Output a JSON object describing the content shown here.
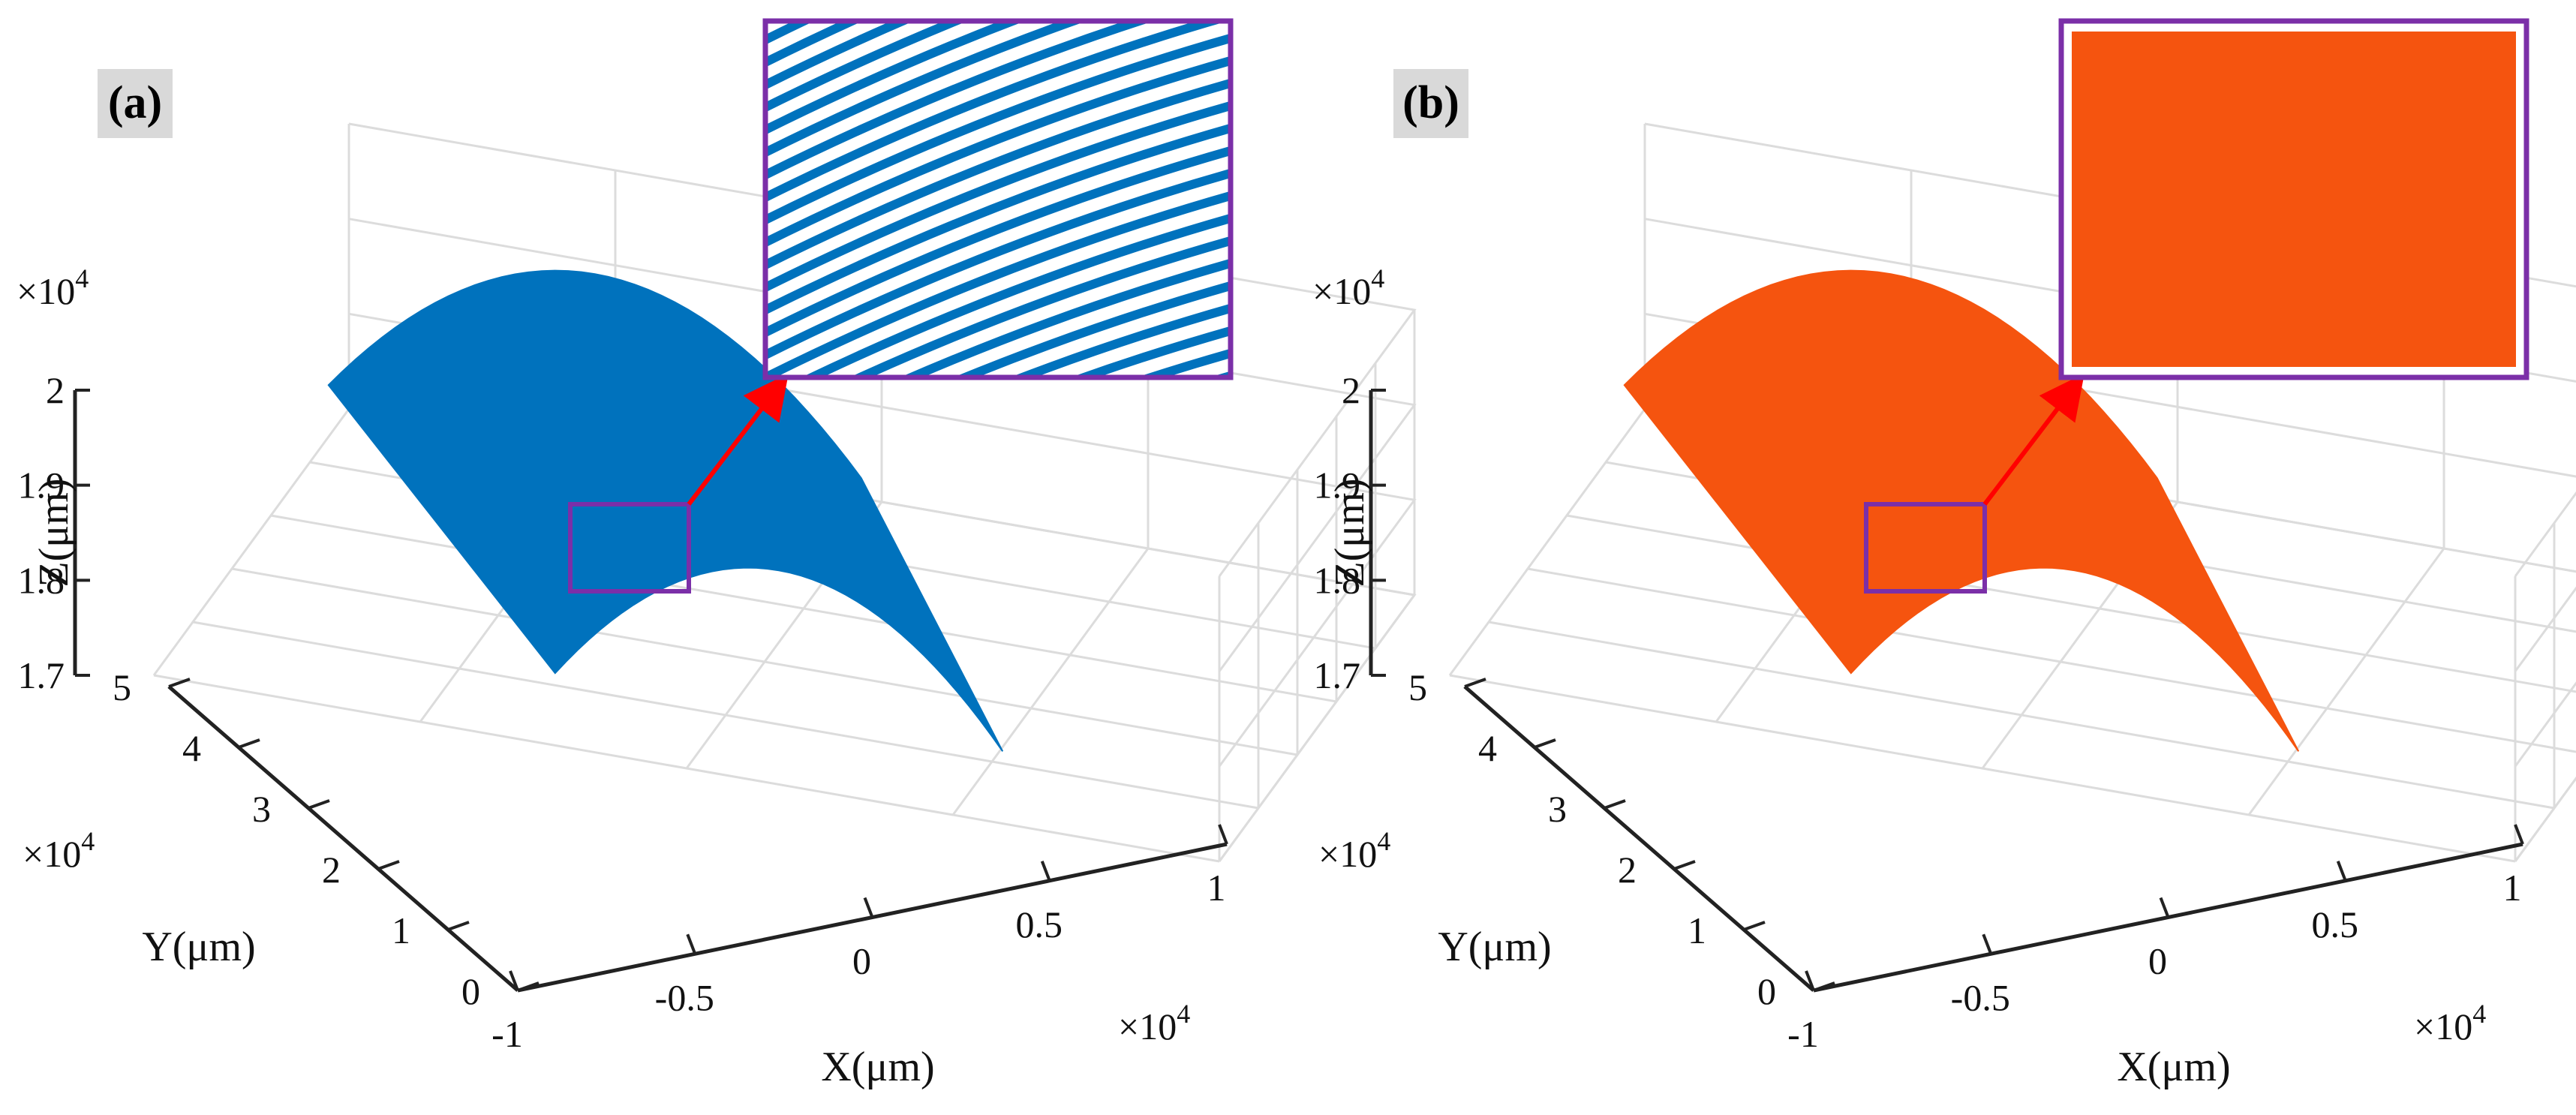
{
  "chart_data": [
    {
      "type": "surface3d",
      "panel_label": "(a)",
      "surface_color": "#0072BD",
      "inset_style": "stripes",
      "inset_stripe_color": "#0072BD",
      "xlabel": "X(μm)",
      "ylabel": "Y(μm)",
      "zlabel": "Z(μm)",
      "x_exponent": "×10",
      "y_exponent": "×10",
      "z_exponent": "×10",
      "exponent_power": "4",
      "x_ticks": [
        "-1",
        "-0.5",
        "0",
        "0.5",
        "1"
      ],
      "y_ticks": [
        "0",
        "1",
        "2",
        "3",
        "4",
        "5"
      ],
      "z_ticks": [
        "1.7",
        "1.8",
        "1.9",
        "2"
      ],
      "xlim": [
        -10000,
        10000
      ],
      "ylim": [
        0,
        50000
      ],
      "zlim": [
        17000,
        20000
      ],
      "grid": true
    },
    {
      "type": "surface3d",
      "panel_label": "(b)",
      "surface_color": "#F5540F",
      "inset_style": "solid",
      "inset_stripe_color": "#F5540F",
      "xlabel": "X(μm)",
      "ylabel": "Y(μm)",
      "zlabel": "Z(μm)",
      "x_exponent": "×10",
      "y_exponent": "×10",
      "z_exponent": "×10",
      "exponent_power": "4",
      "x_ticks": [
        "-1",
        "-0.5",
        "0",
        "0.5",
        "1"
      ],
      "y_ticks": [
        "0",
        "1",
        "2",
        "3",
        "4",
        "5"
      ],
      "z_ticks": [
        "1.7",
        "1.8",
        "1.9",
        "2"
      ],
      "xlim": [
        -10000,
        10000
      ],
      "ylim": [
        0,
        50000
      ],
      "zlim": [
        17000,
        20000
      ],
      "grid": true
    }
  ],
  "colors": {
    "grid": "#dcdcdc",
    "axis": "#222222",
    "zoom_box": "#7B2FA8",
    "arrow": "#FF0000",
    "panel_label_bg": "#d9d9d9"
  }
}
